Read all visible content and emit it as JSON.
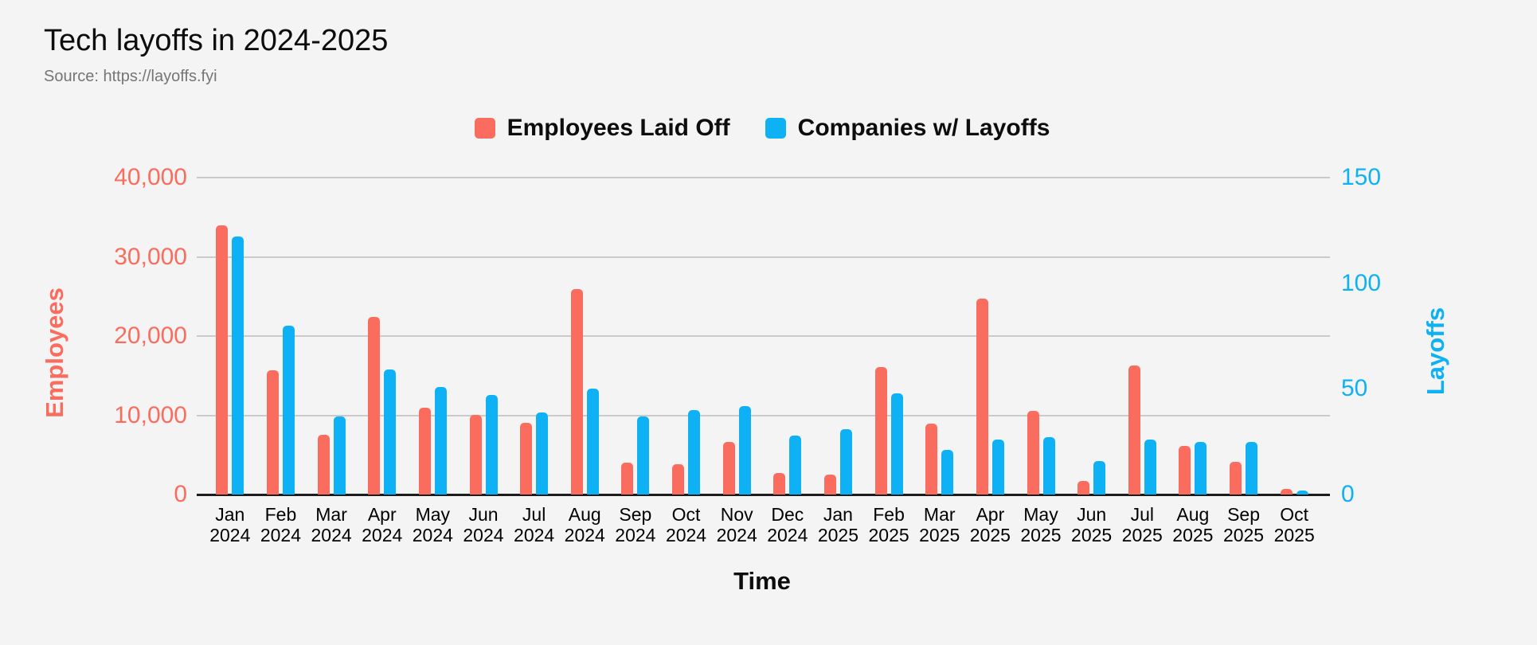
{
  "title": "Tech layoffs in 2024-2025",
  "source": "Source: https://layoffs.fyi",
  "colors": {
    "background": "#f4f4f4",
    "gridline": "#cacaca",
    "axis_baseline": "#1c1c1c",
    "title_text": "#0d0d0d",
    "source_text": "#757575",
    "employees_red": "#fa6d5e",
    "companies_blue": "#0db1f4"
  },
  "chart_data": {
    "type": "bar",
    "title": "Tech layoffs in 2024-2025",
    "xlabel": "Time",
    "grid": true,
    "legend_position": "top",
    "categories": [
      "Jan 2024",
      "Feb 2024",
      "Mar 2024",
      "Apr 2024",
      "May 2024",
      "Jun 2024",
      "Jul 2024",
      "Aug 2024",
      "Sep 2024",
      "Oct 2024",
      "Nov 2024",
      "Dec 2024",
      "Jan 2025",
      "Feb 2025",
      "Mar 2025",
      "Apr 2025",
      "May 2025",
      "Jun 2025",
      "Jul 2025",
      "Aug 2025",
      "Sep 2025",
      "Oct 2025"
    ],
    "series": [
      {
        "name": "Employees Laid Off",
        "axis": "left",
        "color": "#fa6d5e",
        "values": [
          34000,
          15700,
          7500,
          22400,
          11000,
          10100,
          9000,
          25900,
          4000,
          3800,
          6600,
          2700,
          2500,
          16100,
          8900,
          24700,
          10600,
          1700,
          16300,
          6100,
          4100,
          700
        ]
      },
      {
        "name": "Companies w/ Layoffs",
        "axis": "right",
        "color": "#0db1f4",
        "values": [
          122,
          80,
          37,
          59,
          51,
          47,
          39,
          50,
          37,
          40,
          42,
          28,
          31,
          48,
          21,
          26,
          27,
          16,
          26,
          25,
          25,
          2
        ]
      }
    ],
    "left_axis": {
      "title": "Employees",
      "min": 0,
      "max": 40000,
      "ticks": [
        0,
        10000,
        20000,
        30000,
        40000
      ],
      "color": "#fa6d5e"
    },
    "right_axis": {
      "title": "Layoffs",
      "min": 0,
      "max": 150,
      "ticks": [
        0,
        50,
        100,
        150
      ],
      "color": "#0db1f4"
    }
  }
}
